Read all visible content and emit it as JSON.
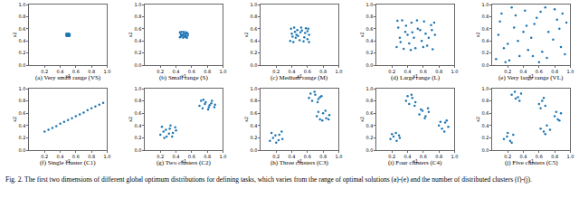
{
  "chart_data": [
    {
      "type": "scatter",
      "title": "(a) Very small range (VS)",
      "xlabel": "x1",
      "ylabel": "x2",
      "color": "#1f77b4",
      "marker": "circle",
      "xlim": [
        0,
        1
      ],
      "ylim": [
        0,
        1
      ],
      "xticks": [
        0.2,
        0.4,
        0.6,
        0.8,
        {
          "value": 1,
          "label": "1.0"
        }
      ],
      "yticks": [
        {
          "value": 0,
          "label": "0.0"
        },
        0.2,
        0.4,
        0.6,
        0.8,
        {
          "value": 1,
          "label": "1.0"
        }
      ],
      "x": [
        0.48,
        0.49,
        0.5,
        0.51,
        0.52,
        0.48,
        0.5,
        0.52,
        0.49,
        0.51,
        0.5,
        0.48,
        0.52,
        0.5,
        0.49,
        0.51
      ],
      "y": [
        0.48,
        0.5,
        0.49,
        0.52,
        0.51,
        0.52,
        0.51,
        0.48,
        0.49,
        0.5,
        0.52,
        0.5,
        0.5,
        0.48,
        0.51,
        0.49
      ]
    },
    {
      "type": "scatter",
      "title": "(b) Small range (S)",
      "xlabel": "x1",
      "ylabel": "x2",
      "color": "#1f77b4",
      "marker": "circle",
      "xlim": [
        0,
        1
      ],
      "ylim": [
        0,
        1
      ],
      "xticks": [
        0.2,
        0.4,
        0.6,
        0.8,
        {
          "value": 1,
          "label": "1.0"
        }
      ],
      "yticks": [
        {
          "value": 0,
          "label": "0.0"
        },
        0.2,
        0.4,
        0.6,
        0.8,
        {
          "value": 1,
          "label": "1.0"
        }
      ],
      "x": [
        0.45,
        0.47,
        0.49,
        0.51,
        0.53,
        0.55,
        0.46,
        0.48,
        0.5,
        0.52,
        0.54,
        0.45,
        0.47,
        0.5,
        0.53,
        0.55,
        0.46,
        0.49,
        0.52,
        0.54
      ],
      "y": [
        0.46,
        0.48,
        0.45,
        0.47,
        0.46,
        0.49,
        0.51,
        0.5,
        0.52,
        0.51,
        0.53,
        0.54,
        0.55,
        0.55,
        0.54,
        0.52,
        0.47,
        0.49,
        0.48,
        0.45
      ]
    },
    {
      "type": "scatter",
      "title": "(c) Medium range (M)",
      "xlabel": "x1",
      "ylabel": "x2",
      "color": "#1f77b4",
      "marker": "circle",
      "xlim": [
        0,
        1
      ],
      "ylim": [
        0,
        1
      ],
      "xticks": [
        0.2,
        0.4,
        0.6,
        0.8,
        {
          "value": 1,
          "label": "1.0"
        }
      ],
      "yticks": [
        {
          "value": 0,
          "label": "0.0"
        },
        0.2,
        0.4,
        0.6,
        0.8,
        {
          "value": 1,
          "label": "1.0"
        }
      ],
      "x": [
        0.38,
        0.42,
        0.45,
        0.5,
        0.55,
        0.6,
        0.62,
        0.4,
        0.44,
        0.48,
        0.53,
        0.57,
        0.61,
        0.39,
        0.43,
        0.47,
        0.52,
        0.56,
        0.6,
        0.41,
        0.46,
        0.51,
        0.58,
        0.62
      ],
      "y": [
        0.4,
        0.38,
        0.45,
        0.41,
        0.39,
        0.43,
        0.5,
        0.52,
        0.55,
        0.48,
        0.57,
        0.53,
        0.6,
        0.6,
        0.62,
        0.58,
        0.62,
        0.46,
        0.56,
        0.47,
        0.5,
        0.54,
        0.61,
        0.38
      ]
    },
    {
      "type": "scatter",
      "title": "(d) Large range (L)",
      "xlabel": "x1",
      "ylabel": "x2",
      "color": "#1f77b4",
      "marker": "circle",
      "xlim": [
        0,
        1
      ],
      "ylim": [
        0,
        1
      ],
      "xticks": [
        0.2,
        0.4,
        0.6,
        0.8,
        {
          "value": 1,
          "label": "1.0"
        }
      ],
      "yticks": [
        {
          "value": 0,
          "label": "0.0"
        },
        0.2,
        0.4,
        0.6,
        0.8,
        {
          "value": 1,
          "label": "1.0"
        }
      ],
      "x": [
        0.26,
        0.3,
        0.35,
        0.42,
        0.5,
        0.58,
        0.65,
        0.72,
        0.75,
        0.28,
        0.37,
        0.45,
        0.53,
        0.61,
        0.7,
        0.27,
        0.33,
        0.4,
        0.48,
        0.56,
        0.63,
        0.74,
        0.31,
        0.44,
        0.52,
        0.67,
        0.38,
        0.6,
        0.71,
        0.46
      ],
      "y": [
        0.3,
        0.45,
        0.27,
        0.36,
        0.28,
        0.4,
        0.32,
        0.26,
        0.5,
        0.62,
        0.55,
        0.7,
        0.6,
        0.72,
        0.66,
        0.73,
        0.74,
        0.5,
        0.45,
        0.58,
        0.52,
        0.7,
        0.38,
        0.25,
        0.74,
        0.45,
        0.65,
        0.3,
        0.58,
        0.54
      ]
    },
    {
      "type": "scatter",
      "title": "(e) Very large range (VL)",
      "xlabel": "x1",
      "ylabel": "x2",
      "color": "#1f77b4",
      "marker": "circle",
      "xlim": [
        0,
        1
      ],
      "ylim": [
        0,
        1
      ],
      "xticks": [
        0.2,
        0.4,
        0.6,
        0.8,
        {
          "value": 1,
          "label": "1.0"
        }
      ],
      "yticks": [
        {
          "value": 0,
          "label": "0.0"
        },
        0.2,
        0.4,
        0.6,
        0.8,
        {
          "value": 1,
          "label": "1.0"
        }
      ],
      "x": [
        0.05,
        0.12,
        0.2,
        0.28,
        0.35,
        0.42,
        0.5,
        0.57,
        0.64,
        0.72,
        0.8,
        0.88,
        0.95,
        0.08,
        0.17,
        0.25,
        0.33,
        0.46,
        0.54,
        0.62,
        0.7,
        0.78,
        0.86,
        0.93,
        0.1,
        0.3,
        0.4,
        0.6,
        0.68,
        0.9,
        0.15,
        0.52,
        0.83,
        0.22,
        0.44
      ],
      "y": [
        0.1,
        0.85,
        0.35,
        0.62,
        0.15,
        0.9,
        0.45,
        0.78,
        0.22,
        0.55,
        0.92,
        0.3,
        0.7,
        0.5,
        0.05,
        0.95,
        0.4,
        0.25,
        0.68,
        0.88,
        0.12,
        0.42,
        0.6,
        0.18,
        0.72,
        0.82,
        0.55,
        0.05,
        0.95,
        0.85,
        0.28,
        0.15,
        0.75,
        0.08,
        0.65
      ]
    },
    {
      "type": "scatter",
      "title": "(f) Single cluster (C1)",
      "xlabel": "x1",
      "ylabel": "x2",
      "color": "#1f77b4",
      "marker": "circle",
      "xlim": [
        0,
        1
      ],
      "ylim": [
        0,
        1
      ],
      "xticks": [
        0.2,
        0.4,
        0.6,
        0.8,
        {
          "value": 1,
          "label": "1.0"
        }
      ],
      "yticks": [
        {
          "value": 0,
          "label": "0.0"
        },
        0.2,
        0.4,
        0.6,
        0.8,
        {
          "value": 1,
          "label": "1.0"
        }
      ],
      "x": [
        0.2,
        0.25,
        0.3,
        0.35,
        0.4,
        0.45,
        0.5,
        0.55,
        0.6,
        0.65,
        0.7,
        0.75,
        0.8,
        0.85,
        0.9,
        0.95
      ],
      "y": [
        0.3,
        0.33,
        0.36,
        0.39,
        0.43,
        0.46,
        0.49,
        0.52,
        0.55,
        0.58,
        0.61,
        0.65,
        0.68,
        0.71,
        0.74,
        0.77
      ]
    },
    {
      "type": "scatter",
      "title": "(g) Two clusters (C2)",
      "xlabel": "x1",
      "ylabel": "x2",
      "color": "#1f77b4",
      "marker": "circle",
      "xlim": [
        0,
        1
      ],
      "ylim": [
        0,
        1
      ],
      "xticks": [
        0.2,
        0.4,
        0.6,
        0.8,
        {
          "value": 1,
          "label": "1.0"
        }
      ],
      "yticks": [
        {
          "value": 0,
          "label": "0.0"
        },
        0.2,
        0.4,
        0.6,
        0.8,
        {
          "value": 1,
          "label": "1.0"
        }
      ],
      "x": [
        0.2,
        0.24,
        0.28,
        0.32,
        0.36,
        0.4,
        0.22,
        0.27,
        0.31,
        0.35,
        0.39,
        0.25,
        0.33,
        0.7,
        0.74,
        0.78,
        0.82,
        0.86,
        0.9,
        0.72,
        0.77,
        0.81,
        0.85,
        0.89,
        0.75,
        0.83
      ],
      "y": [
        0.25,
        0.3,
        0.22,
        0.35,
        0.28,
        0.32,
        0.38,
        0.33,
        0.27,
        0.22,
        0.37,
        0.2,
        0.4,
        0.72,
        0.68,
        0.78,
        0.7,
        0.8,
        0.74,
        0.8,
        0.75,
        0.66,
        0.76,
        0.7,
        0.82,
        0.73
      ]
    },
    {
      "type": "scatter",
      "title": "(h) Three clusters (C3)",
      "xlabel": "x1",
      "ylabel": "x2",
      "color": "#1f77b4",
      "marker": "circle",
      "xlim": [
        0,
        1
      ],
      "ylim": [
        0,
        1
      ],
      "xticks": [
        0.2,
        0.4,
        0.6,
        0.8,
        {
          "value": 1,
          "label": "1.0"
        }
      ],
      "yticks": [
        {
          "value": 0,
          "label": "0.0"
        },
        0.2,
        0.4,
        0.6,
        0.8,
        {
          "value": 1,
          "label": "1.0"
        }
      ],
      "x": [
        0.12,
        0.16,
        0.2,
        0.24,
        0.28,
        0.14,
        0.19,
        0.23,
        0.27,
        0.62,
        0.66,
        0.7,
        0.74,
        0.78,
        0.64,
        0.69,
        0.73,
        0.76,
        0.72,
        0.76,
        0.8,
        0.84,
        0.88,
        0.74,
        0.79,
        0.83,
        0.87
      ],
      "y": [
        0.15,
        0.2,
        0.12,
        0.25,
        0.18,
        0.28,
        0.24,
        0.16,
        0.3,
        0.85,
        0.8,
        0.9,
        0.83,
        0.88,
        0.92,
        0.95,
        0.78,
        0.86,
        0.55,
        0.5,
        0.6,
        0.52,
        0.57,
        0.62,
        0.48,
        0.64,
        0.5
      ]
    },
    {
      "type": "scatter",
      "title": "(i) Four clusters (C4)",
      "xlabel": "x1",
      "ylabel": "x2",
      "color": "#1f77b4",
      "marker": "circle",
      "xlim": [
        0,
        1
      ],
      "ylim": [
        0,
        1
      ],
      "xticks": [
        0.2,
        0.4,
        0.6,
        0.8,
        {
          "value": 1,
          "label": "1.0"
        }
      ],
      "yticks": [
        {
          "value": 0,
          "label": "0.0"
        },
        0.2,
        0.4,
        0.6,
        0.8,
        {
          "value": 1,
          "label": "1.0"
        }
      ],
      "x": [
        0.18,
        0.22,
        0.26,
        0.3,
        0.2,
        0.25,
        0.29,
        0.38,
        0.42,
        0.46,
        0.5,
        0.4,
        0.45,
        0.49,
        0.55,
        0.59,
        0.63,
        0.67,
        0.57,
        0.62,
        0.66,
        0.8,
        0.84,
        0.88,
        0.92,
        0.82,
        0.87,
        0.9
      ],
      "y": [
        0.18,
        0.22,
        0.15,
        0.2,
        0.26,
        0.28,
        0.24,
        0.8,
        0.75,
        0.85,
        0.78,
        0.88,
        0.9,
        0.72,
        0.58,
        0.64,
        0.55,
        0.62,
        0.66,
        0.52,
        0.68,
        0.4,
        0.35,
        0.45,
        0.38,
        0.46,
        0.3,
        0.48
      ]
    },
    {
      "type": "scatter",
      "title": "(j) Five clusters (C5)",
      "xlabel": "x1",
      "ylabel": "x2",
      "color": "#1f77b4",
      "marker": "circle",
      "xlim": [
        0,
        1
      ],
      "ylim": [
        0,
        1
      ],
      "xticks": [
        0.2,
        0.4,
        0.6,
        0.8,
        {
          "value": 1,
          "label": "1.0"
        }
      ],
      "yticks": [
        {
          "value": 0,
          "label": "0.0"
        },
        0.2,
        0.4,
        0.6,
        0.8,
        {
          "value": 1,
          "label": "1.0"
        }
      ],
      "x": [
        0.15,
        0.19,
        0.23,
        0.27,
        0.2,
        0.25,
        0.25,
        0.29,
        0.33,
        0.37,
        0.3,
        0.35,
        0.6,
        0.64,
        0.68,
        0.62,
        0.66,
        0.62,
        0.66,
        0.7,
        0.74,
        0.68,
        0.8,
        0.84,
        0.88,
        0.82,
        0.86
      ],
      "y": [
        0.18,
        0.22,
        0.15,
        0.25,
        0.28,
        0.12,
        0.9,
        0.95,
        0.86,
        0.92,
        0.84,
        0.8,
        0.75,
        0.8,
        0.72,
        0.68,
        0.85,
        0.35,
        0.3,
        0.4,
        0.33,
        0.26,
        0.55,
        0.5,
        0.6,
        0.62,
        0.48
      ]
    }
  ],
  "caption": "Fig. 2. The first two dimensions of different global optimum distributions for defining tasks, which varies from the range of optimal solutions (a)-(e) and the number of distributed clusters (f)-(j)."
}
